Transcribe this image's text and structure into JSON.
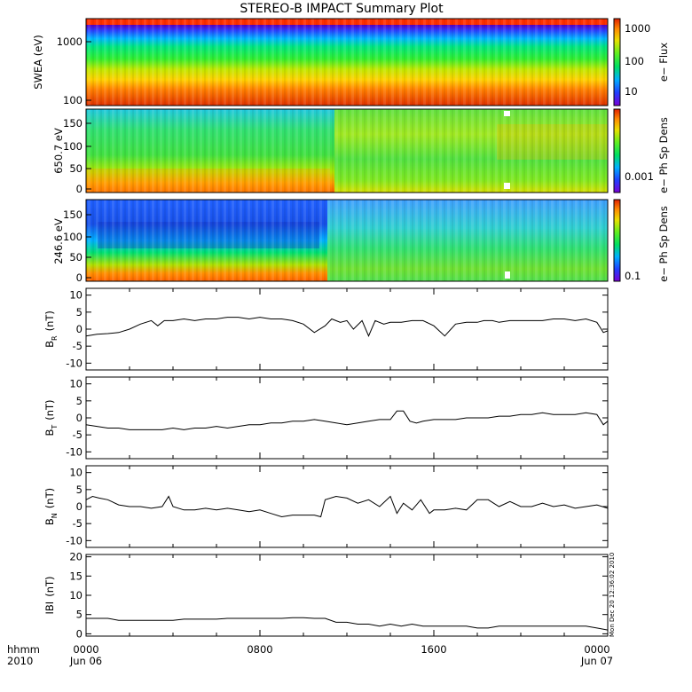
{
  "chart_data": {
    "type": "multi-panel time series",
    "title": "STEREO-B IMPACT Summary Plot",
    "time_axis": {
      "prefix_top": "hhmm",
      "prefix_bottom": "2010",
      "ticks_top": [
        "0000",
        "0800",
        "1600",
        "0000"
      ],
      "ticks_bottom": [
        "Jun 06",
        "",
        "",
        "Jun 07"
      ],
      "range_hours": [
        0,
        24
      ]
    },
    "panels": [
      {
        "kind": "spectrogram",
        "ylabel": "SWEA (eV)",
        "yscale": "log",
        "ylim": [
          100,
          2000
        ],
        "yticks": [
          "1000",
          "100"
        ],
        "colorbar": {
          "label": "e− Flux",
          "scale": "log",
          "ticks": [
            "1000",
            "100",
            "10"
          ]
        }
      },
      {
        "kind": "spectrogram",
        "ylabel": "650.7 eV",
        "yscale": "linear",
        "ylim": [
          0,
          180
        ],
        "yticks": [
          "150",
          "100",
          "50",
          "0"
        ],
        "colorbar": {
          "label": "e− Ph Sp Dens",
          "scale": "log",
          "ticks": [
            "0.001"
          ]
        }
      },
      {
        "kind": "spectrogram",
        "ylabel": "246.6 eV",
        "yscale": "linear",
        "ylim": [
          0,
          180
        ],
        "yticks": [
          "150",
          "100",
          "50",
          "0"
        ],
        "colorbar": {
          "label": "e− Ph Sp Dens",
          "scale": "log",
          "ticks": [
            "0.1"
          ]
        }
      },
      {
        "kind": "line",
        "ylabel": "B",
        "ylabel_sub": "R",
        "ylabel_unit": "(nT)",
        "ylim": [
          -12,
          12
        ],
        "yticks": [
          10,
          5,
          0,
          -5,
          -10
        ],
        "x": [
          0,
          0.5,
          1,
          1.5,
          2,
          2.5,
          3,
          3.3,
          3.6,
          4,
          4.5,
          5,
          5.5,
          6,
          6.5,
          7,
          7.5,
          8,
          8.5,
          9,
          9.5,
          10,
          10.5,
          11,
          11.3,
          11.7,
          12,
          12.3,
          12.7,
          13,
          13.3,
          13.7,
          14,
          14.5,
          15,
          15.5,
          16,
          16.5,
          17,
          17.5,
          18,
          18.3,
          18.7,
          19,
          19.5,
          20,
          20.5,
          21,
          21.5,
          22,
          22.5,
          23,
          23.5,
          23.8,
          24
        ],
        "y": [
          -2,
          -1.5,
          -1.3,
          -1,
          0,
          1.5,
          2.5,
          1,
          2.5,
          2.5,
          3,
          2.5,
          3,
          3,
          3.5,
          3.5,
          3,
          3.5,
          3,
          3,
          2.5,
          1.5,
          -1,
          1,
          3,
          2,
          2.5,
          0,
          2.5,
          -2,
          2.5,
          1.5,
          2,
          2,
          2.5,
          2.5,
          1,
          -2,
          1.5,
          2,
          2,
          2.5,
          2.5,
          2,
          2.5,
          2.5,
          2.5,
          2.5,
          3,
          3,
          2.5,
          3,
          2,
          -1,
          -0.5
        ]
      },
      {
        "kind": "line",
        "ylabel": "B",
        "ylabel_sub": "T",
        "ylabel_unit": "(nT)",
        "ylim": [
          -12,
          12
        ],
        "yticks": [
          10,
          5,
          0,
          -5,
          -10
        ],
        "x": [
          0,
          0.5,
          1,
          1.5,
          2,
          2.5,
          3,
          3.5,
          4,
          4.5,
          5,
          5.5,
          6,
          6.5,
          7,
          7.5,
          8,
          8.5,
          9,
          9.5,
          10,
          10.5,
          11,
          11.5,
          12,
          12.5,
          13,
          13.5,
          14,
          14.3,
          14.6,
          14.9,
          15.2,
          15.5,
          16,
          16.5,
          17,
          17.5,
          18,
          18.5,
          19,
          19.5,
          20,
          20.5,
          21,
          21.5,
          22,
          22.5,
          23,
          23.5,
          23.8,
          24
        ],
        "y": [
          -2,
          -2.5,
          -3,
          -3,
          -3.5,
          -3.5,
          -3.5,
          -3.5,
          -3,
          -3.5,
          -3,
          -3,
          -2.5,
          -3,
          -2.5,
          -2,
          -2,
          -1.5,
          -1.5,
          -1,
          -1,
          -0.5,
          -1,
          -1.5,
          -2,
          -1.5,
          -1,
          -0.5,
          -0.5,
          2,
          2,
          -1,
          -1.5,
          -1,
          -0.5,
          -0.5,
          -0.5,
          0,
          0,
          0,
          0.5,
          0.5,
          1,
          1,
          1.5,
          1,
          1,
          1,
          1.5,
          1,
          -2,
          -1
        ]
      },
      {
        "kind": "line",
        "ylabel": "B",
        "ylabel_sub": "N",
        "ylabel_unit": "(nT)",
        "ylim": [
          -12,
          12
        ],
        "yticks": [
          10,
          5,
          0,
          -5,
          -10
        ],
        "x": [
          0,
          0.3,
          0.6,
          1,
          1.5,
          2,
          2.5,
          3,
          3.5,
          3.8,
          4,
          4.5,
          5,
          5.5,
          6,
          6.5,
          7,
          7.5,
          8,
          8.5,
          9,
          9.5,
          10,
          10.5,
          10.8,
          11,
          11.5,
          12,
          12.5,
          13,
          13.5,
          14,
          14.3,
          14.6,
          15,
          15.4,
          15.8,
          16,
          16.5,
          17,
          17.5,
          18,
          18.5,
          19,
          19.5,
          20,
          20.5,
          21,
          21.5,
          22,
          22.5,
          23,
          23.5,
          24
        ],
        "y": [
          2,
          3,
          2.5,
          2,
          0.5,
          0,
          0,
          -0.5,
          0,
          3,
          0,
          -1,
          -1,
          -0.5,
          -1,
          -0.5,
          -1,
          -1.5,
          -1,
          -2,
          -3,
          -2.5,
          -2.5,
          -2.5,
          -3,
          2,
          3,
          2.5,
          1,
          2,
          0,
          3,
          -2,
          1,
          -1,
          2,
          -2,
          -1,
          -1,
          -0.5,
          -1,
          2,
          2,
          0,
          1.5,
          0,
          0,
          1,
          0,
          0.5,
          -0.5,
          0,
          0.5,
          -0.5
        ]
      },
      {
        "kind": "line",
        "ylabel": "IBI",
        "ylabel_unit": "(nT)",
        "ylim": [
          -0.6,
          20.6
        ],
        "yticks": [
          20,
          15,
          10,
          5,
          0
        ],
        "x": [
          0,
          0.5,
          1,
          1.5,
          2,
          2.5,
          3,
          3.5,
          4,
          4.5,
          5,
          5.5,
          6,
          6.5,
          7,
          7.5,
          8,
          8.5,
          9,
          9.5,
          10,
          10.5,
          11,
          11.5,
          12,
          12.5,
          13,
          13.5,
          14,
          14.5,
          15,
          15.5,
          16,
          16.5,
          17,
          17.5,
          18,
          18.5,
          19,
          19.5,
          20,
          20.5,
          21,
          21.5,
          22,
          22.5,
          23,
          23.5,
          24
        ],
        "y": [
          4,
          4,
          4,
          3.5,
          3.5,
          3.5,
          3.5,
          3.5,
          3.5,
          3.8,
          3.8,
          3.8,
          3.8,
          4,
          4,
          4,
          4,
          4,
          4,
          4.2,
          4.2,
          4,
          4,
          3,
          3,
          2.5,
          2.5,
          2,
          2.5,
          2,
          2.5,
          2,
          2,
          2,
          2,
          2,
          1.5,
          1.5,
          2,
          2,
          2,
          2,
          2,
          2,
          2,
          2,
          2,
          1.5,
          1
        ]
      }
    ],
    "annotation": "Mon Dec 20 12:36:02 2010"
  }
}
